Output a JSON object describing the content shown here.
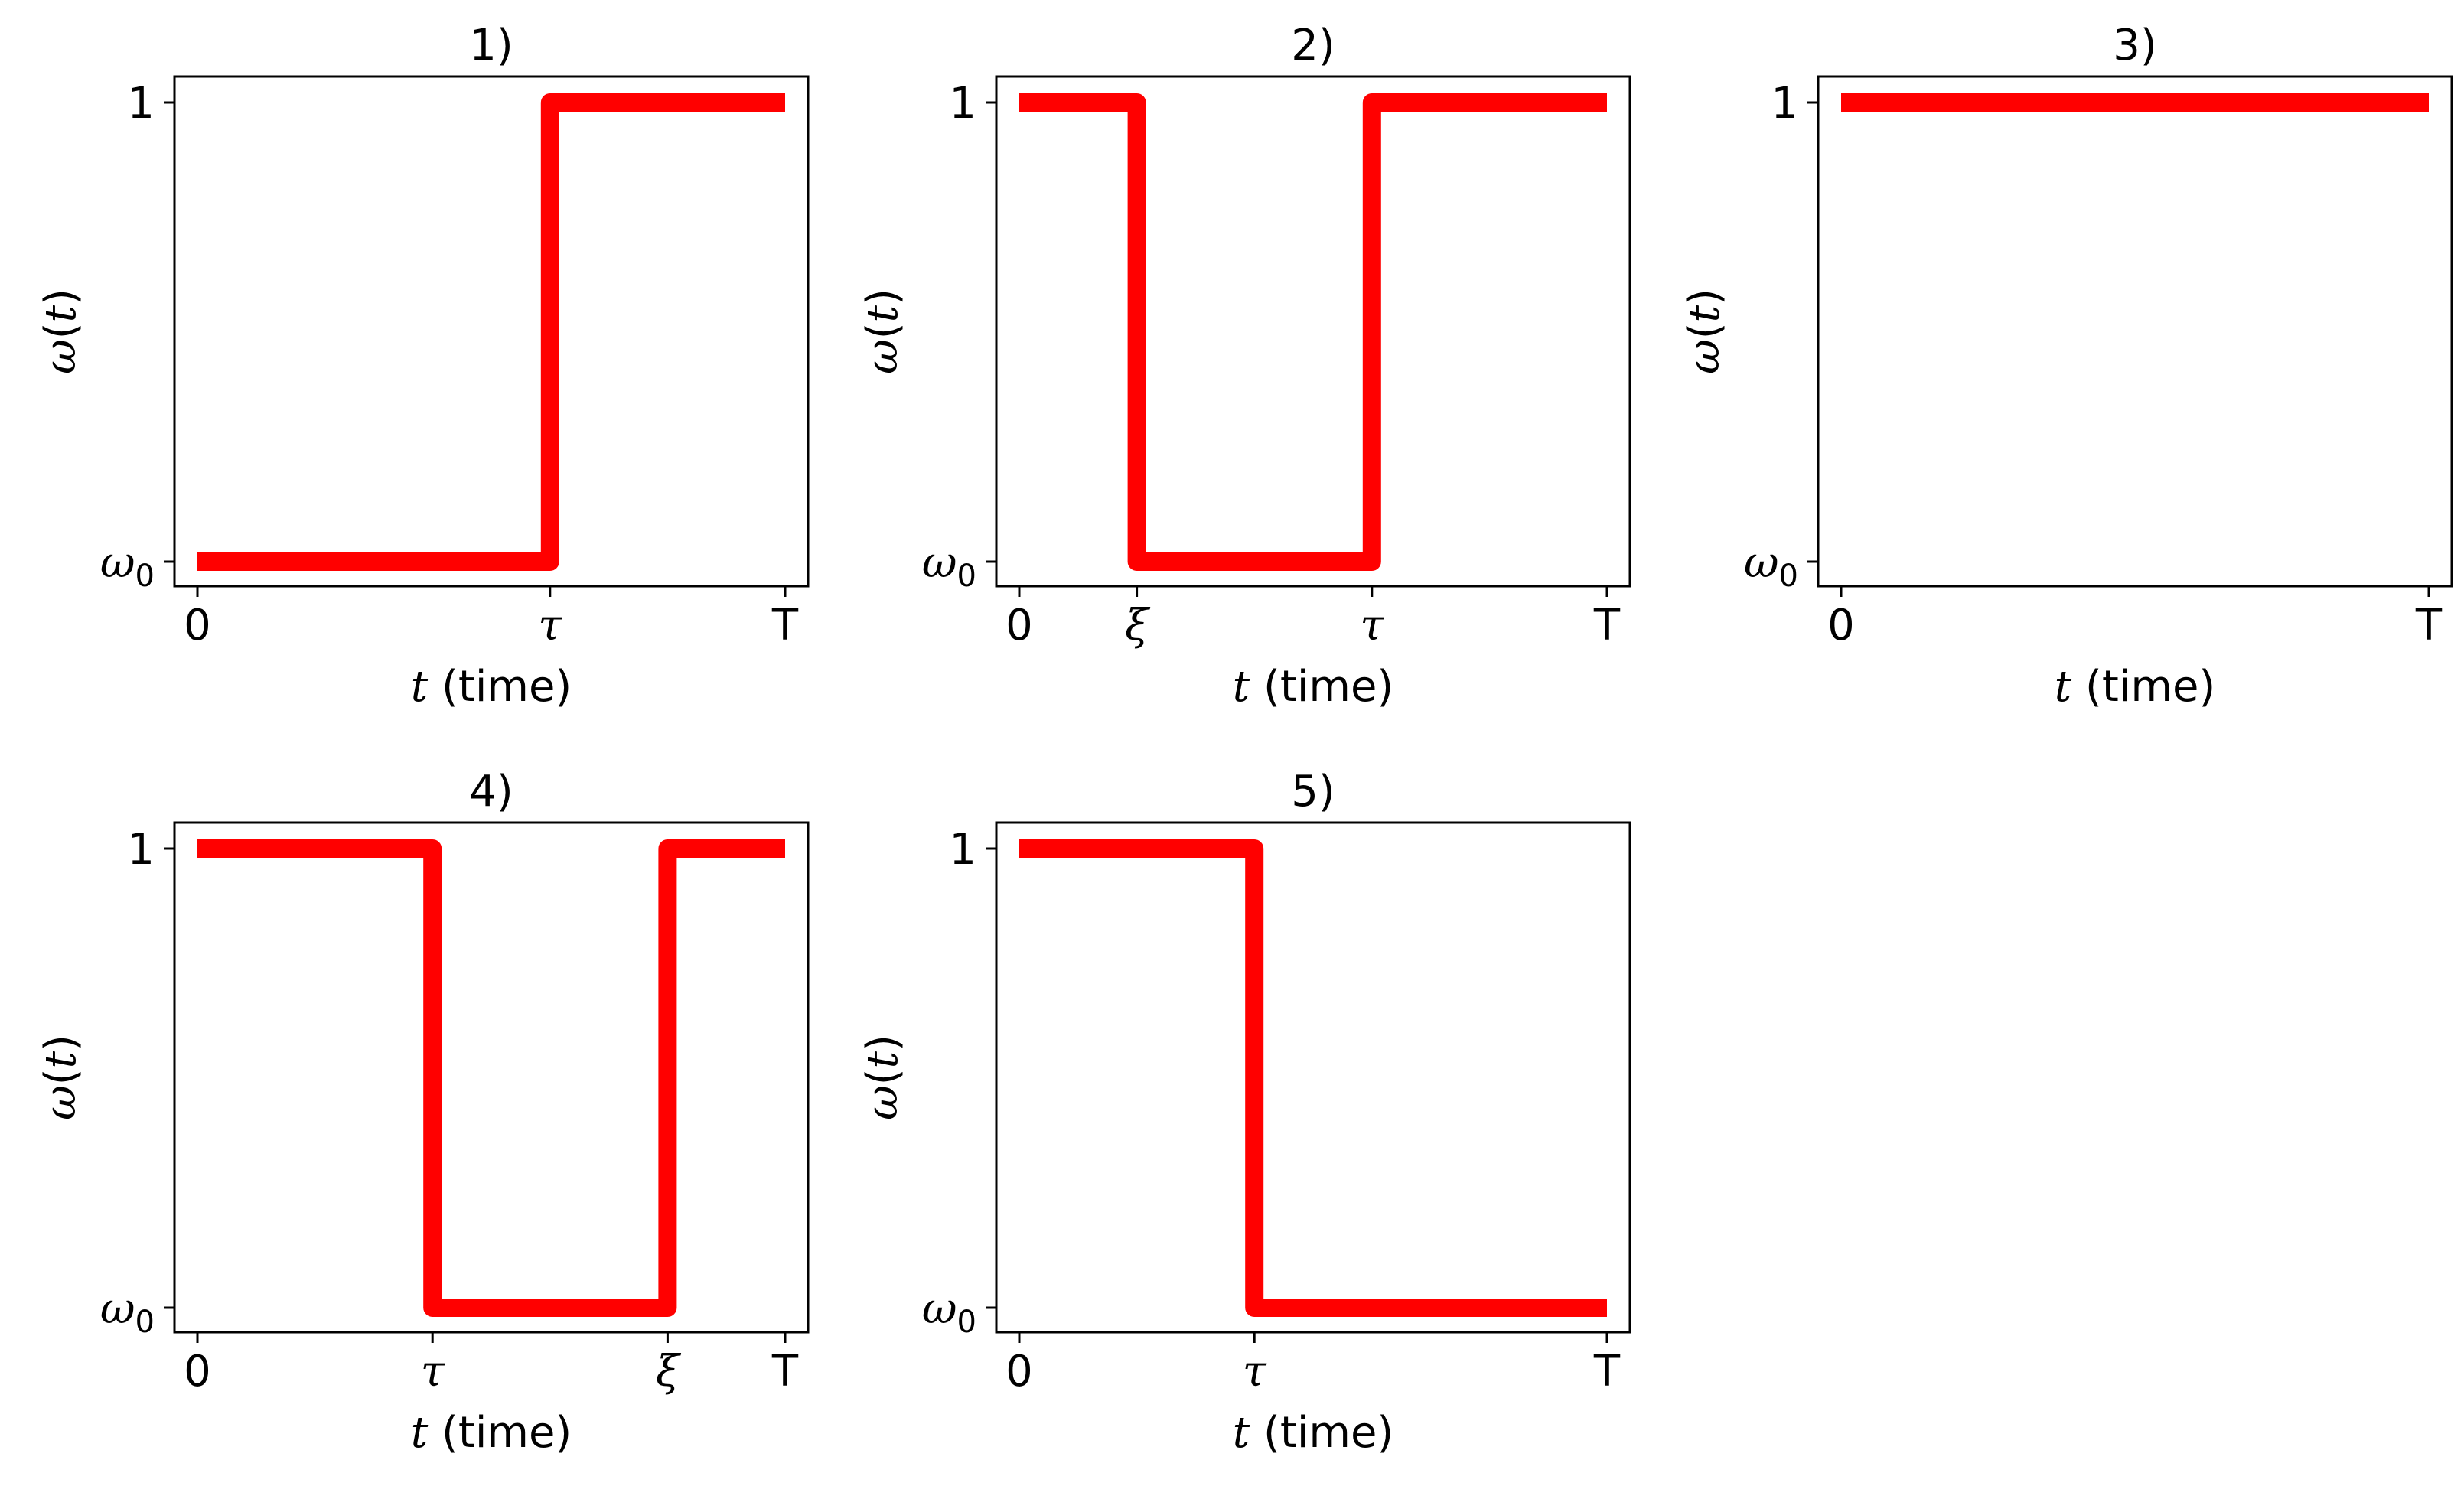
{
  "figure": {
    "line_color": "#ff0000",
    "y_axis_label": {
      "func": "ω",
      "open": "(",
      "var": "t",
      "close": ")"
    },
    "x_axis_label": {
      "var": "t",
      "rest": " (time)"
    }
  },
  "chart_data": [
    {
      "type": "line",
      "title": "1)",
      "xlabel": "t (time)",
      "ylabel": "ω(t)",
      "xlim": [
        0,
        1
      ],
      "ylim": [
        "ω0",
        "1"
      ],
      "x_ticks": [
        {
          "label": "0",
          "value": 0,
          "symbol": false
        },
        {
          "label": "τ",
          "value": 0.6,
          "symbol": true
        },
        {
          "label": "T",
          "value": 1,
          "symbol": false
        }
      ],
      "y_ticks": [
        {
          "label": "ω",
          "sub": "0",
          "value": 0
        },
        {
          "label": "1",
          "sub": "",
          "value": 1
        }
      ],
      "series": [
        {
          "points": [
            [
              0,
              0
            ],
            [
              0.6,
              0
            ],
            [
              0.6,
              1
            ],
            [
              1,
              1
            ]
          ]
        }
      ]
    },
    {
      "type": "line",
      "title": "2)",
      "xlabel": "t (time)",
      "ylabel": "ω(t)",
      "xlim": [
        0,
        1
      ],
      "ylim": [
        "ω0",
        "1"
      ],
      "x_ticks": [
        {
          "label": "0",
          "value": 0,
          "symbol": false
        },
        {
          "label": "ξ",
          "value": 0.2,
          "symbol": true
        },
        {
          "label": "τ",
          "value": 0.6,
          "symbol": true
        },
        {
          "label": "T",
          "value": 1,
          "symbol": false
        }
      ],
      "y_ticks": [
        {
          "label": "ω",
          "sub": "0",
          "value": 0
        },
        {
          "label": "1",
          "sub": "",
          "value": 1
        }
      ],
      "series": [
        {
          "points": [
            [
              0,
              1
            ],
            [
              0.2,
              1
            ],
            [
              0.2,
              0
            ],
            [
              0.6,
              0
            ],
            [
              0.6,
              1
            ],
            [
              1,
              1
            ]
          ]
        }
      ]
    },
    {
      "type": "line",
      "title": "3)",
      "xlabel": "t (time)",
      "ylabel": "ω(t)",
      "xlim": [
        0,
        1
      ],
      "ylim": [
        "ω0",
        "1"
      ],
      "x_ticks": [
        {
          "label": "0",
          "value": 0,
          "symbol": false
        },
        {
          "label": "T",
          "value": 1,
          "symbol": false
        }
      ],
      "y_ticks": [
        {
          "label": "ω",
          "sub": "0",
          "value": 0
        },
        {
          "label": "1",
          "sub": "",
          "value": 1
        }
      ],
      "series": [
        {
          "points": [
            [
              0,
              1
            ],
            [
              1,
              1
            ]
          ]
        }
      ]
    },
    {
      "type": "line",
      "title": "4)",
      "xlabel": "t (time)",
      "ylabel": "ω(t)",
      "xlim": [
        0,
        1
      ],
      "ylim": [
        "ω0",
        "1"
      ],
      "x_ticks": [
        {
          "label": "0",
          "value": 0,
          "symbol": false
        },
        {
          "label": "τ",
          "value": 0.4,
          "symbol": true
        },
        {
          "label": "ξ",
          "value": 0.8,
          "symbol": true
        },
        {
          "label": "T",
          "value": 1,
          "symbol": false
        }
      ],
      "y_ticks": [
        {
          "label": "ω",
          "sub": "0",
          "value": 0
        },
        {
          "label": "1",
          "sub": "",
          "value": 1
        }
      ],
      "series": [
        {
          "points": [
            [
              0,
              1
            ],
            [
              0.4,
              1
            ],
            [
              0.4,
              0
            ],
            [
              0.8,
              0
            ],
            [
              0.8,
              1
            ],
            [
              1,
              1
            ]
          ]
        }
      ]
    },
    {
      "type": "line",
      "title": "5)",
      "xlabel": "t (time)",
      "ylabel": "ω(t)",
      "xlim": [
        0,
        1
      ],
      "ylim": [
        "ω0",
        "1"
      ],
      "x_ticks": [
        {
          "label": "0",
          "value": 0,
          "symbol": false
        },
        {
          "label": "τ",
          "value": 0.4,
          "symbol": true
        },
        {
          "label": "T",
          "value": 1,
          "symbol": false
        }
      ],
      "y_ticks": [
        {
          "label": "ω",
          "sub": "0",
          "value": 0
        },
        {
          "label": "1",
          "sub": "",
          "value": 1
        }
      ],
      "series": [
        {
          "points": [
            [
              0,
              1
            ],
            [
              0.4,
              1
            ],
            [
              0.4,
              0
            ],
            [
              1,
              0
            ]
          ]
        }
      ]
    }
  ]
}
